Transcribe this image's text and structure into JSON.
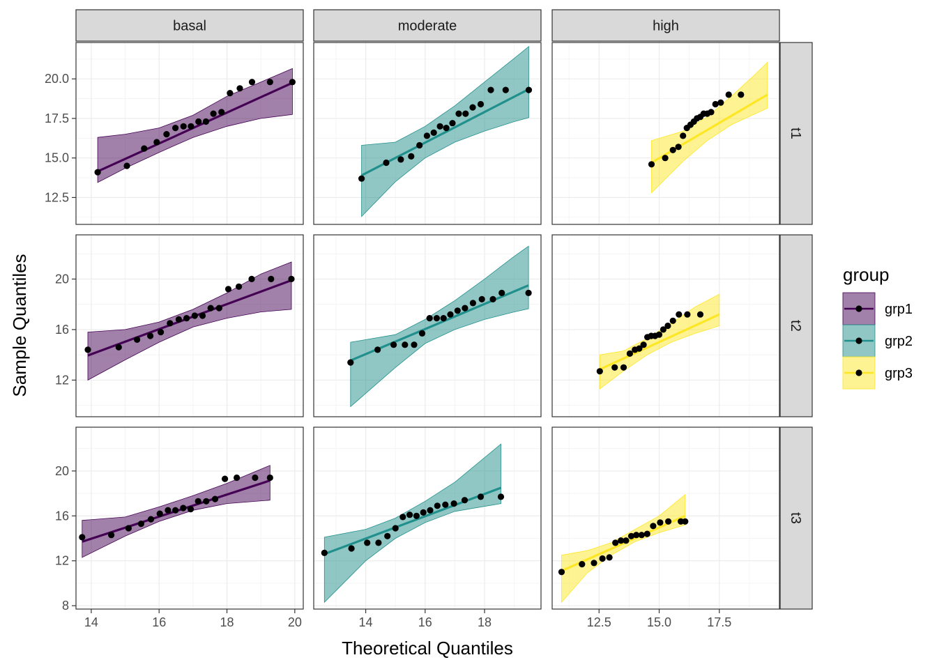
{
  "chart_data": {
    "type": "scatter",
    "title": "",
    "xlabel": "Theoretical Quantiles",
    "ylabel": "Sample Quantiles",
    "col_facets": [
      "basal",
      "moderate",
      "high"
    ],
    "row_facets": [
      "t1",
      "t2",
      "t3"
    ],
    "legend": {
      "title": "group",
      "position": "right",
      "entries": [
        {
          "label": "grp1",
          "color": "#440154"
        },
        {
          "label": "grp2",
          "color": "#21908C"
        },
        {
          "label": "grp3",
          "color": "#FDE725"
        }
      ]
    },
    "x_axes": [
      {
        "lim": [
          13.55,
          20.25
        ],
        "ticks": [
          14,
          16,
          18,
          20
        ],
        "labels": [
          "14",
          "16",
          "18",
          "20"
        ]
      },
      {
        "lim": [
          12.25,
          19.9
        ],
        "ticks": [
          14,
          16,
          18
        ],
        "labels": [
          "14",
          "16",
          "18"
        ]
      },
      {
        "lim": [
          10.55,
          20.0
        ],
        "ticks": [
          12.5,
          15.0,
          17.5
        ],
        "labels": [
          "12.5",
          "15.0",
          "17.5"
        ]
      }
    ],
    "y_axes": [
      {
        "lim": [
          10.8,
          22.3
        ],
        "ticks": [
          12.5,
          15.0,
          17.5,
          20.0
        ],
        "labels": [
          "12.5",
          "15.0",
          "17.5",
          "20.0"
        ]
      },
      {
        "lim": [
          9.1,
          23.5
        ],
        "ticks": [
          12,
          16,
          20
        ],
        "labels": [
          "12",
          "16",
          "20"
        ]
      },
      {
        "lim": [
          7.7,
          23.9
        ],
        "ticks": [
          8,
          12,
          16,
          20
        ],
        "labels": [
          "8",
          "12",
          "16",
          "20"
        ]
      }
    ],
    "panels": [
      {
        "col": "basal",
        "row": "t1",
        "group": "grp1",
        "x": [
          14.19,
          15.05,
          15.56,
          15.93,
          16.22,
          16.48,
          16.72,
          16.94,
          17.16,
          17.38,
          17.6,
          17.84,
          18.09,
          18.38,
          18.74,
          19.27,
          19.93
        ],
        "y": [
          14.1,
          14.5,
          15.6,
          16.0,
          16.5,
          16.9,
          17.0,
          17.0,
          17.3,
          17.3,
          17.8,
          17.9,
          19.1,
          19.4,
          19.8,
          19.8,
          19.8
        ],
        "line": [
          [
            14.19,
            14.15
          ],
          [
            19.93,
            19.75
          ]
        ],
        "band": {
          "x": [
            14.19,
            15.0,
            16.0,
            17.0,
            18.0,
            19.0,
            19.93
          ],
          "lower": [
            13.45,
            14.35,
            15.35,
            16.3,
            17.0,
            17.5,
            17.75
          ],
          "upper": [
            16.3,
            16.5,
            16.9,
            17.7,
            18.9,
            19.8,
            20.65
          ]
        }
      },
      {
        "col": "moderate",
        "row": "t1",
        "group": "grp2",
        "x": [
          13.86,
          14.69,
          15.18,
          15.53,
          15.81,
          16.06,
          16.29,
          16.5,
          16.71,
          16.92,
          17.13,
          17.36,
          17.6,
          17.87,
          18.21,
          18.71,
          19.49
        ],
        "y": [
          13.7,
          14.7,
          14.9,
          15.1,
          15.8,
          16.4,
          16.6,
          17.0,
          16.9,
          17.2,
          17.8,
          17.8,
          18.2,
          18.4,
          19.3,
          19.3,
          19.3
        ],
        "line": [
          [
            13.86,
            13.9
          ],
          [
            19.49,
            19.35
          ]
        ],
        "band": {
          "x": [
            13.86,
            15.0,
            16.0,
            17.0,
            18.0,
            19.0,
            19.49
          ],
          "lower": [
            11.3,
            13.5,
            15.0,
            16.0,
            16.7,
            17.3,
            17.55
          ],
          "upper": [
            15.8,
            16.0,
            17.0,
            18.3,
            19.8,
            21.3,
            22.05
          ]
        }
      },
      {
        "col": "high",
        "row": "t1",
        "group": "grp3",
        "x": [
          14.68,
          15.25,
          15.57,
          15.8,
          15.99,
          16.15,
          16.3,
          16.44,
          16.57,
          16.71,
          16.85,
          17.0,
          17.16,
          17.34,
          17.56,
          17.89,
          18.4
        ],
        "y": [
          14.6,
          15.0,
          15.5,
          15.7,
          16.4,
          16.9,
          17.1,
          17.3,
          17.5,
          17.6,
          17.8,
          17.8,
          17.9,
          18.4,
          18.5,
          19.0,
          19.0
        ],
        "line": [
          [
            14.68,
            14.7
          ],
          [
            19.5,
            19.0
          ]
        ],
        "band": {
          "x": [
            14.68,
            16.0,
            17.0,
            18.0,
            19.0,
            19.5
          ],
          "lower": [
            12.8,
            14.8,
            16.1,
            17.1,
            17.8,
            18.15
          ],
          "upper": [
            16.1,
            16.7,
            17.6,
            18.9,
            20.3,
            21.05
          ]
        }
      },
      {
        "col": "basal",
        "row": "t2",
        "group": "grp1",
        "x": [
          13.9,
          14.81,
          15.35,
          15.74,
          16.05,
          16.32,
          16.58,
          16.81,
          17.05,
          17.28,
          17.52,
          17.77,
          18.04,
          18.35,
          18.73,
          19.3,
          19.9
        ],
        "y": [
          14.4,
          14.6,
          15.2,
          15.5,
          15.8,
          16.5,
          16.8,
          16.9,
          17.1,
          17.1,
          17.7,
          17.7,
          19.2,
          19.4,
          20.0,
          20.0,
          20.0
        ],
        "line": [
          [
            13.9,
            13.95
          ],
          [
            19.9,
            19.9
          ]
        ],
        "band": {
          "x": [
            13.9,
            15.0,
            16.0,
            17.0,
            18.0,
            19.0,
            19.9
          ],
          "lower": [
            12.0,
            13.6,
            15.0,
            16.2,
            16.9,
            17.4,
            17.6
          ],
          "upper": [
            15.8,
            16.0,
            16.6,
            17.6,
            18.9,
            20.4,
            21.35
          ]
        }
      },
      {
        "col": "moderate",
        "row": "t2",
        "group": "grp2",
        "x": [
          13.49,
          14.4,
          14.94,
          15.32,
          15.63,
          15.9,
          16.15,
          16.39,
          16.62,
          16.85,
          17.09,
          17.34,
          17.61,
          17.91,
          18.28,
          18.58,
          19.48
        ],
        "y": [
          13.4,
          14.4,
          14.8,
          14.8,
          14.8,
          15.7,
          16.9,
          16.9,
          16.9,
          17.2,
          17.5,
          17.7,
          18.1,
          18.4,
          18.4,
          18.9,
          18.9
        ],
        "line": [
          [
            13.49,
            13.55
          ],
          [
            19.48,
            19.5
          ]
        ],
        "band": {
          "x": [
            13.49,
            15.0,
            16.0,
            17.0,
            18.0,
            19.0,
            19.48
          ],
          "lower": [
            9.9,
            13.0,
            14.9,
            16.0,
            16.8,
            17.4,
            17.65
          ],
          "upper": [
            15.0,
            15.6,
            16.8,
            18.3,
            20.0,
            21.8,
            22.6
          ]
        }
      },
      {
        "col": "high",
        "row": "t2",
        "group": "grp3",
        "x": [
          12.53,
          13.15,
          13.52,
          13.78,
          13.99,
          14.17,
          14.35,
          14.51,
          14.67,
          14.83,
          15.0,
          15.17,
          15.36,
          15.57,
          15.82,
          16.17,
          16.71
        ],
        "y": [
          12.7,
          13.0,
          13.0,
          14.1,
          14.4,
          14.5,
          14.8,
          15.4,
          15.5,
          15.5,
          15.6,
          16.0,
          16.3,
          16.7,
          17.2,
          17.2,
          17.2
        ],
        "line": [
          [
            12.53,
            12.85
          ],
          [
            17.5,
            17.2
          ]
        ],
        "band": {
          "x": [
            12.53,
            13.5,
            14.5,
            15.5,
            16.5,
            17.5
          ],
          "lower": [
            11.3,
            12.7,
            14.0,
            15.0,
            15.7,
            16.3
          ],
          "upper": [
            14.0,
            14.3,
            15.3,
            16.5,
            17.8,
            18.8
          ]
        }
      },
      {
        "col": "basal",
        "row": "t3",
        "group": "grp1",
        "x": [
          13.73,
          14.59,
          15.1,
          15.47,
          15.76,
          16.02,
          16.26,
          16.48,
          16.71,
          16.93,
          17.15,
          17.39,
          17.65,
          17.94,
          18.29,
          18.83,
          19.27
        ],
        "y": [
          14.1,
          14.3,
          14.9,
          15.3,
          15.7,
          16.2,
          16.5,
          16.5,
          16.7,
          16.6,
          17.3,
          17.3,
          17.5,
          19.3,
          19.4,
          19.4,
          19.4
        ],
        "line": [
          [
            13.73,
            13.7
          ],
          [
            19.27,
            19.15
          ]
        ],
        "band": {
          "x": [
            13.73,
            15.0,
            16.0,
            17.0,
            18.0,
            19.27
          ],
          "lower": [
            12.3,
            14.2,
            15.5,
            16.5,
            17.1,
            17.4
          ],
          "upper": [
            15.6,
            15.9,
            16.8,
            17.8,
            18.9,
            20.5
          ]
        }
      },
      {
        "col": "moderate",
        "row": "t3",
        "group": "grp2",
        "x": [
          12.61,
          13.52,
          14.05,
          14.43,
          14.73,
          15.0,
          15.25,
          15.48,
          15.71,
          15.94,
          16.17,
          16.41,
          16.68,
          16.97,
          17.33,
          17.87,
          18.55
        ],
        "y": [
          12.7,
          13.1,
          13.6,
          13.6,
          14.2,
          14.9,
          15.9,
          16.1,
          16.0,
          16.3,
          16.5,
          16.9,
          17.0,
          17.1,
          17.4,
          17.7,
          17.7
        ],
        "line": [
          [
            12.61,
            12.6
          ],
          [
            18.55,
            18.5
          ]
        ],
        "band": {
          "x": [
            12.61,
            14.0,
            15.0,
            16.0,
            17.0,
            18.55
          ],
          "lower": [
            8.3,
            12.0,
            14.0,
            15.4,
            16.4,
            17.1
          ],
          "upper": [
            14.1,
            14.8,
            15.8,
            17.3,
            19.0,
            22.4
          ]
        }
      },
      {
        "col": "high",
        "row": "t3",
        "group": "grp3",
        "x": [
          10.94,
          11.79,
          12.29,
          12.64,
          12.93,
          13.18,
          13.41,
          13.62,
          13.84,
          14.05,
          14.27,
          14.5,
          14.75,
          15.04,
          15.38,
          15.9,
          16.08
        ],
        "y": [
          11.0,
          11.7,
          11.8,
          12.2,
          12.3,
          13.6,
          13.8,
          13.8,
          14.2,
          14.3,
          14.3,
          14.4,
          15.1,
          15.4,
          15.5,
          15.5,
          15.5
        ],
        "line": [
          [
            10.94,
            11.1
          ],
          [
            16.08,
            16.0
          ]
        ],
        "band": {
          "x": [
            10.94,
            12.0,
            13.0,
            14.0,
            15.0,
            16.08
          ],
          "lower": [
            8.3,
            10.9,
            12.5,
            13.7,
            14.5,
            15.2
          ],
          "upper": [
            12.5,
            12.9,
            13.6,
            14.8,
            16.0,
            17.9
          ]
        }
      }
    ]
  }
}
